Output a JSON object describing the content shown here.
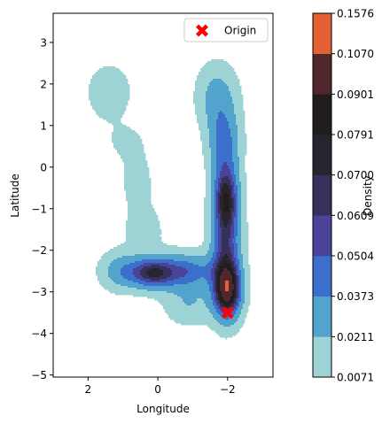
{
  "chart_data": {
    "type": "contour",
    "xlabel": "Longitude",
    "ylabel": "Latitude",
    "xlim": [
      3.0,
      -3.3
    ],
    "ylim": [
      -5.05,
      3.7
    ],
    "x_inverted": true,
    "xticks": [
      2,
      0,
      -2
    ],
    "yticks": [
      3,
      2,
      1,
      0,
      -1,
      -2,
      -3,
      -4,
      -5
    ],
    "xtick_labels": [
      "2",
      "0",
      "−2"
    ],
    "ytick_labels": [
      "3",
      "2",
      "1",
      "0",
      "−1",
      "−2",
      "−3",
      "−4",
      "−5"
    ],
    "colorbar": {
      "label": "Density",
      "levels": [
        0.0071,
        0.0211,
        0.0373,
        0.0504,
        0.0609,
        0.07,
        0.0791,
        0.0901,
        0.107,
        0.1576
      ],
      "level_labels": [
        "0.0071",
        "0.0211",
        "0.0373",
        "0.0504",
        "0.0609",
        "0.0700",
        "0.0791",
        "0.0901",
        "0.1070",
        "0.1576"
      ],
      "colors": [
        "#9dd3d5",
        "#53a4cd",
        "#3c6fcb",
        "#4a4399",
        "#36315a",
        "#26252d",
        "#201d1c",
        "#4f272c",
        "#e46136"
      ]
    },
    "points": [
      {
        "name": "Origin",
        "x": -2.0,
        "y": -3.5,
        "marker": "X",
        "color": "#ff0000"
      }
    ],
    "density_peaks": [
      {
        "x": -2.0,
        "y": -3.0,
        "level": 8
      },
      {
        "x": -2.0,
        "y": -0.7,
        "level": 7
      },
      {
        "x": 0.2,
        "y": -2.55,
        "level": 7
      }
    ],
    "legend": {
      "placement": "top-right",
      "entries": [
        "Origin"
      ]
    }
  }
}
